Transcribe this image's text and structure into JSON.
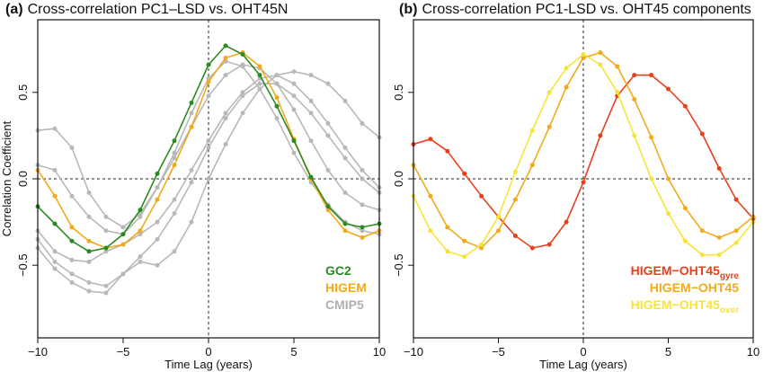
{
  "chart_data": [
    {
      "type": "line",
      "panel_label": "(a)",
      "title": "Cross-correlation PC1–LSD vs. OHT45N",
      "xlabel": "Time Lag (years)",
      "ylabel": "Correlation Coefficient",
      "xlim": [
        -10,
        10
      ],
      "ylim": [
        -0.92,
        0.92
      ],
      "xticks": [
        -10,
        -5,
        0,
        5,
        10
      ],
      "yticks": [
        -0.5,
        0.0,
        0.5
      ],
      "xtick_labels": [
        "−10",
        "−5",
        "0",
        "5",
        "10"
      ],
      "ytick_labels": [
        "−0.5",
        "0.0",
        "0.5"
      ],
      "reference_lines": {
        "x": 0,
        "y": 0,
        "style": "dotted"
      },
      "legend": {
        "placement": "bottom-right",
        "entries": [
          {
            "label": "GC2",
            "color": "#2a8a22"
          },
          {
            "label": "HIGEM",
            "color": "#f2aa1c"
          },
          {
            "label": "CMIP5",
            "color": "#b0b0b0"
          }
        ]
      },
      "series": [
        {
          "name": "CMIP5",
          "color": "#b8b8b8",
          "x": [
            -10,
            -9,
            -8,
            -7,
            -6,
            -5,
            -4,
            -3,
            -2,
            -1,
            0,
            1,
            2,
            3,
            4,
            5,
            6,
            7,
            8,
            9,
            10
          ],
          "y": [
            0.28,
            0.29,
            0.18,
            -0.08,
            -0.22,
            -0.28,
            -0.2,
            -0.05,
            0.12,
            0.3,
            0.48,
            0.6,
            0.66,
            0.64,
            0.55,
            0.4,
            0.22,
            0.05,
            -0.08,
            -0.15,
            -0.18
          ]
        },
        {
          "name": "CMIP5",
          "color": "#b8b8b8",
          "x": [
            -10,
            -9,
            -8,
            -7,
            -6,
            -5,
            -4,
            -3,
            -2,
            -1,
            0,
            1,
            2,
            3,
            4,
            5,
            6,
            7,
            8,
            9,
            10
          ],
          "y": [
            0.08,
            0.05,
            -0.1,
            -0.22,
            -0.3,
            -0.32,
            -0.22,
            -0.05,
            0.15,
            0.38,
            0.58,
            0.68,
            0.65,
            0.52,
            0.35,
            0.15,
            -0.02,
            -0.15,
            -0.25,
            -0.3,
            -0.32
          ]
        },
        {
          "name": "CMIP5",
          "color": "#b8b8b8",
          "x": [
            -10,
            -9,
            -8,
            -7,
            -6,
            -5,
            -4,
            -3,
            -2,
            -1,
            0,
            1,
            2,
            3,
            4,
            5,
            6,
            7,
            8,
            9,
            10
          ],
          "y": [
            -0.3,
            -0.42,
            -0.47,
            -0.48,
            -0.42,
            -0.38,
            -0.32,
            -0.25,
            -0.12,
            0.05,
            0.22,
            0.38,
            0.5,
            0.58,
            0.6,
            0.55,
            0.45,
            0.32,
            0.18,
            0.05,
            -0.05
          ]
        },
        {
          "name": "CMIP5",
          "color": "#b8b8b8",
          "x": [
            -10,
            -9,
            -8,
            -7,
            -6,
            -5,
            -4,
            -3,
            -2,
            -1,
            0,
            1,
            2,
            3,
            4,
            5,
            6,
            7,
            8,
            9,
            10
          ],
          "y": [
            -0.35,
            -0.48,
            -0.55,
            -0.6,
            -0.62,
            -0.55,
            -0.45,
            -0.35,
            -0.2,
            -0.02,
            0.18,
            0.35,
            0.48,
            0.55,
            0.55,
            0.48,
            0.38,
            0.25,
            0.12,
            0.0,
            -0.08
          ]
        },
        {
          "name": "CMIP5",
          "color": "#b8b8b8",
          "x": [
            -10,
            -9,
            -8,
            -7,
            -6,
            -5,
            -4,
            -3,
            -2,
            -1,
            0,
            1,
            2,
            3,
            4,
            5,
            6,
            7,
            8,
            9,
            10
          ],
          "y": [
            -0.4,
            -0.52,
            -0.6,
            -0.65,
            -0.66,
            -0.55,
            -0.48,
            -0.5,
            -0.42,
            -0.25,
            0.0,
            0.2,
            0.38,
            0.52,
            0.6,
            0.62,
            0.6,
            0.55,
            0.45,
            0.32,
            0.24
          ]
        },
        {
          "name": "HIGEM",
          "color": "#f2aa1c",
          "x": [
            -10,
            -9,
            -8,
            -7,
            -6,
            -5,
            -4,
            -3,
            -2,
            -1,
            0,
            1,
            2,
            3,
            4,
            5,
            6,
            7,
            8,
            9,
            10
          ],
          "y": [
            0.05,
            -0.1,
            -0.28,
            -0.36,
            -0.4,
            -0.38,
            -0.3,
            -0.12,
            0.08,
            0.3,
            0.56,
            0.7,
            0.73,
            0.65,
            0.47,
            0.23,
            0.0,
            -0.18,
            -0.3,
            -0.34,
            -0.3
          ]
        },
        {
          "name": "GC2",
          "color": "#2a8a22",
          "x": [
            -10,
            -9,
            -8,
            -7,
            -6,
            -5,
            -4,
            -3,
            -2,
            -1,
            0,
            1,
            2,
            3,
            4,
            5,
            6,
            7,
            8,
            9,
            10
          ],
          "y": [
            -0.16,
            -0.26,
            -0.36,
            -0.42,
            -0.4,
            -0.32,
            -0.18,
            0.03,
            0.22,
            0.44,
            0.66,
            0.77,
            0.72,
            0.6,
            0.42,
            0.22,
            0.01,
            -0.16,
            -0.26,
            -0.28,
            -0.26
          ]
        }
      ]
    },
    {
      "type": "line",
      "panel_label": "(b)",
      "title": "Cross-correlation PC1-LSD vs. OHT45 components",
      "xlabel": "Time Lag (years)",
      "ylabel": "",
      "xlim": [
        -10,
        10
      ],
      "ylim": [
        -0.92,
        0.92
      ],
      "xticks": [
        -10,
        -5,
        0,
        5,
        10
      ],
      "yticks": [
        -0.5,
        0.0,
        0.5
      ],
      "xtick_labels": [
        "−10",
        "−5",
        "0",
        "5",
        "10"
      ],
      "ytick_labels": [
        "−0.5",
        "0.0",
        "0.5"
      ],
      "reference_lines": {
        "x": 0,
        "y": 0,
        "style": "dotted"
      },
      "legend": {
        "placement": "bottom-right",
        "entries": [
          {
            "label": "HIGEM−OHT45",
            "sub": "gyre",
            "color": "#e8401c"
          },
          {
            "label": "HIGEM−OHT45",
            "sub": "",
            "color": "#f2aa1c"
          },
          {
            "label": "HIGEM−OHT45",
            "sub": "over",
            "color": "#f7e43a"
          }
        ]
      },
      "series": [
        {
          "name": "HIGEM−OHT45gyre",
          "color": "#e8401c",
          "x": [
            -10,
            -9,
            -8,
            -7,
            -6,
            -5,
            -4,
            -3,
            -2,
            -1,
            0,
            1,
            2,
            3,
            4,
            5,
            6,
            7,
            8,
            9,
            10
          ],
          "y": [
            0.2,
            0.23,
            0.16,
            0.03,
            -0.1,
            -0.22,
            -0.33,
            -0.4,
            -0.38,
            -0.25,
            -0.02,
            0.25,
            0.48,
            0.6,
            0.6,
            0.52,
            0.42,
            0.26,
            0.06,
            -0.12,
            -0.23
          ]
        },
        {
          "name": "HIGEM−OHT45",
          "color": "#f2aa1c",
          "x": [
            -10,
            -9,
            -8,
            -7,
            -6,
            -5,
            -4,
            -3,
            -2,
            -1,
            0,
            1,
            2,
            3,
            4,
            5,
            6,
            7,
            8,
            9,
            10
          ],
          "y": [
            0.08,
            -0.1,
            -0.28,
            -0.36,
            -0.4,
            -0.3,
            -0.12,
            0.08,
            0.3,
            0.53,
            0.7,
            0.73,
            0.65,
            0.46,
            0.24,
            0.0,
            -0.17,
            -0.3,
            -0.34,
            -0.3,
            -0.22
          ]
        },
        {
          "name": "HIGEM−OHT45over",
          "color": "#f7e43a",
          "x": [
            -10,
            -9,
            -8,
            -7,
            -6,
            -5,
            -4,
            -3,
            -2,
            -1,
            0,
            1,
            2,
            3,
            4,
            5,
            6,
            7,
            8,
            9,
            10
          ],
          "y": [
            -0.1,
            -0.3,
            -0.42,
            -0.45,
            -0.38,
            -0.22,
            0.04,
            0.28,
            0.5,
            0.64,
            0.72,
            0.66,
            0.5,
            0.25,
            0.0,
            -0.2,
            -0.36,
            -0.44,
            -0.44,
            -0.37,
            -0.25
          ]
        }
      ]
    }
  ]
}
